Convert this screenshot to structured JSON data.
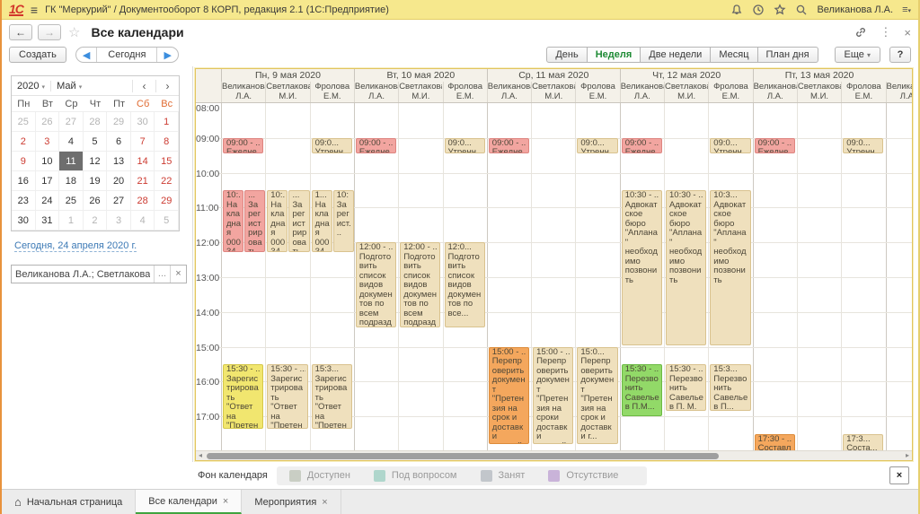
{
  "titlebar": {
    "app_title": "ГК \"Меркурий\" / Документооборот 8 КОРП, редакция 2.1  (1С:Предприятие)",
    "user": "Великанова Л.А."
  },
  "navbar": {
    "title": "Все календари"
  },
  "toolbar": {
    "create": "Создать",
    "today": "Сегодня",
    "views": [
      {
        "label": "День"
      },
      {
        "label": "Неделя"
      },
      {
        "label": "Две недели"
      },
      {
        "label": "Месяц"
      },
      {
        "label": "План дня"
      }
    ],
    "more": "Еще",
    "help": "?"
  },
  "icons": {
    "back": "←",
    "forward": "→",
    "star": "☆",
    "close": "×",
    "dots": "⋮",
    "more_caret": "▾",
    "prev": "◀",
    "next": "▶",
    "mc_prev": "‹",
    "mc_next": "›",
    "hamburger": "≡",
    "home": "⌂",
    "ellipsis": "...",
    "scroll_left": "◂",
    "scroll_right": "▸",
    "caret": "▾"
  },
  "sidebar": {
    "mini_calendar": {
      "year": "2020",
      "month": "Май",
      "weekdays": [
        {
          "label": "Пн",
          "weekend": false
        },
        {
          "label": "Вт",
          "weekend": false
        },
        {
          "label": "Ср",
          "weekend": false
        },
        {
          "label": "Чт",
          "weekend": false
        },
        {
          "label": "Пт",
          "weekend": false
        },
        {
          "label": "Сб",
          "weekend": true
        },
        {
          "label": "Вс",
          "weekend": true
        }
      ],
      "rows": [
        [
          {
            "n": 25,
            "t": "dim"
          },
          {
            "n": 26,
            "t": "dim"
          },
          {
            "n": 27,
            "t": "dim"
          },
          {
            "n": 28,
            "t": "dim"
          },
          {
            "n": 29,
            "t": "dim"
          },
          {
            "n": 30,
            "t": "dim"
          },
          {
            "n": 1,
            "t": "red"
          }
        ],
        [
          {
            "n": 2,
            "t": "red"
          },
          {
            "n": 3,
            "t": "red"
          },
          {
            "n": 4,
            "t": "norm"
          },
          {
            "n": 5,
            "t": "norm"
          },
          {
            "n": 6,
            "t": "norm"
          },
          {
            "n": 7,
            "t": "red"
          },
          {
            "n": 8,
            "t": "red"
          }
        ],
        [
          {
            "n": 9,
            "t": "red"
          },
          {
            "n": 10,
            "t": "norm"
          },
          {
            "n": 11,
            "t": "sel"
          },
          {
            "n": 12,
            "t": "norm"
          },
          {
            "n": 13,
            "t": "norm"
          },
          {
            "n": 14,
            "t": "red"
          },
          {
            "n": 15,
            "t": "red"
          }
        ],
        [
          {
            "n": 16,
            "t": "norm"
          },
          {
            "n": 17,
            "t": "norm"
          },
          {
            "n": 18,
            "t": "norm"
          },
          {
            "n": 19,
            "t": "norm"
          },
          {
            "n": 20,
            "t": "norm"
          },
          {
            "n": 21,
            "t": "red"
          },
          {
            "n": 22,
            "t": "red"
          }
        ],
        [
          {
            "n": 23,
            "t": "norm"
          },
          {
            "n": 24,
            "t": "norm"
          },
          {
            "n": 25,
            "t": "norm"
          },
          {
            "n": 26,
            "t": "norm"
          },
          {
            "n": 27,
            "t": "norm"
          },
          {
            "n": 28,
            "t": "red"
          },
          {
            "n": 29,
            "t": "red"
          }
        ],
        [
          {
            "n": 30,
            "t": "norm"
          },
          {
            "n": 31,
            "t": "norm"
          },
          {
            "n": 1,
            "t": "dim"
          },
          {
            "n": 2,
            "t": "dim"
          },
          {
            "n": 3,
            "t": "dim"
          },
          {
            "n": 4,
            "t": "dim"
          },
          {
            "n": 5,
            "t": "dim"
          }
        ]
      ]
    },
    "today_link": "Сегодня, 24 апреля 2020 г.",
    "filter_value": "Великанова Л.А.; Светлакова М.И.; Фр"
  },
  "calendar": {
    "hours": [
      "08:00",
      "09:00",
      "10:00",
      "11:00",
      "12:00",
      "13:00",
      "14:00",
      "15:00",
      "16:00",
      "17:00"
    ],
    "days": [
      {
        "label": "Пн, 9 мая 2020",
        "persons": [
          "Великанова Л.А.",
          "Светлакова М.И.",
          "Фролова Е.М."
        ]
      },
      {
        "label": "Вт, 10 мая 2020",
        "persons": [
          "Великанова Л.А.",
          "Светлакова М.И.",
          "Фролова Е.М."
        ]
      },
      {
        "label": "Ср, 11 мая 2020",
        "persons": [
          "Великанова Л.А.",
          "Светлакова М.И.",
          "Фролова Е.М."
        ]
      },
      {
        "label": "Чт, 12 мая 2020",
        "persons": [
          "Великанова Л.А.",
          "Светлакова М.И.",
          "Фролова Е.М."
        ]
      },
      {
        "label": "Пт, 13 мая 2020",
        "persons": [
          "Великанова Л.А.",
          "Светлакова М.И.",
          "Фролова Е.М."
        ]
      }
    ],
    "partial_person": "Великанова Л.А.",
    "events": [
      {
        "d": 0,
        "p": 0,
        "s": 9,
        "e": 9.5,
        "c": "red",
        "time": "09:00 - ...",
        "title": "Ежеднев..."
      },
      {
        "d": 0,
        "p": 0,
        "s": 10.5,
        "e": 12.33,
        "c": "red",
        "slot": 0,
        "slots": 2,
        "time": "10:...",
        "title": "Накладная 00034 по договору №3 (..."
      },
      {
        "d": 0,
        "p": 0,
        "s": 10.5,
        "e": 12.33,
        "c": "red",
        "slot": 1,
        "slots": 2,
        "time": "...",
        "title": "Зарегистрировать..."
      },
      {
        "d": 0,
        "p": 1,
        "s": 10.5,
        "e": 12.33,
        "c": "tan",
        "slot": 0,
        "slots": 2,
        "time": "10:...",
        "title": "Накладная 00034 по договору №3..."
      },
      {
        "d": 0,
        "p": 1,
        "s": 10.5,
        "e": 12.33,
        "c": "tan",
        "slot": 1,
        "slots": 2,
        "time": "...",
        "title": "Зарегистрировать..."
      },
      {
        "d": 0,
        "p": 2,
        "s": 9,
        "e": 9.5,
        "c": "tan",
        "time": "09:0...",
        "title": "Утренн..."
      },
      {
        "d": 0,
        "p": 2,
        "s": 10.5,
        "e": 12.33,
        "c": "tan",
        "slot": 0,
        "slots": 2,
        "time": "1...",
        "title": "Накладная 00034 по д..."
      },
      {
        "d": 0,
        "p": 2,
        "s": 10.5,
        "e": 12.33,
        "c": "tan",
        "slot": 1,
        "slots": 2,
        "time": "10:",
        "title": "Зарегист..."
      },
      {
        "d": 0,
        "p": 0,
        "s": 15.5,
        "e": 17.4,
        "c": "yellow",
        "time": "15:30 - ...",
        "title": "Зарегистрировать \"Ответ на \"Претензия на качество по..."
      },
      {
        "d": 0,
        "p": 1,
        "s": 15.5,
        "e": 17.4,
        "c": "tan",
        "time": "15:30 - ...",
        "title": "Зарегистрировать \"Ответ на \"Претензия на качество..."
      },
      {
        "d": 0,
        "p": 2,
        "s": 15.5,
        "e": 17.4,
        "c": "tan",
        "time": "15:3...",
        "title": "Зарегистрировать \"Ответ на \"Претензи..."
      },
      {
        "d": 1,
        "p": 0,
        "s": 9,
        "e": 9.5,
        "c": "red",
        "time": "09:00 - ...",
        "title": "Ежеднев..."
      },
      {
        "d": 1,
        "p": 2,
        "s": 9,
        "e": 9.5,
        "c": "tan",
        "time": "09:0...",
        "title": "Утренн..."
      },
      {
        "d": 1,
        "p": 0,
        "s": 12,
        "e": 14.5,
        "c": "tan",
        "time": "12:00 - ...",
        "title": "Подготовить список видов документов по всем подразделения"
      },
      {
        "d": 1,
        "p": 1,
        "s": 12,
        "e": 14.5,
        "c": "tan",
        "time": "12:00 - ...",
        "title": "Подготовить список видов документов по всем подразделен..."
      },
      {
        "d": 1,
        "p": 2,
        "s": 12,
        "e": 14.5,
        "c": "tan",
        "time": "12:0...",
        "title": "Подготовить список видов документов по все..."
      },
      {
        "d": 2,
        "p": 0,
        "s": 9,
        "e": 9.5,
        "c": "red",
        "time": "09:00 - ...",
        "title": "Ежеднев..."
      },
      {
        "d": 2,
        "p": 2,
        "s": 9,
        "e": 9.5,
        "c": "tan",
        "time": "09:0...",
        "title": "Утренн..."
      },
      {
        "d": 2,
        "p": 0,
        "s": 15,
        "e": 17.85,
        "c": "orange",
        "time": "15:00 - ...",
        "title": "Перепроверить документ \"Претензия на срок и доставки готовой продукции (№ 3..."
      },
      {
        "d": 2,
        "p": 1,
        "s": 15,
        "e": 17.85,
        "c": "tan",
        "time": "15:00 - ...",
        "title": "Перепроверить документ \"Претензия на сроки доставки готовой продукции (..."
      },
      {
        "d": 2,
        "p": 2,
        "s": 15,
        "e": 17.85,
        "c": "tan",
        "time": "15:0...",
        "title": "Перепроверить документ \"Претензия на срок и доставки г..."
      },
      {
        "d": 3,
        "p": 0,
        "s": 9,
        "e": 9.5,
        "c": "red",
        "time": "09:00 - ...",
        "title": "Ежеднев..."
      },
      {
        "d": 3,
        "p": 2,
        "s": 9,
        "e": 9.5,
        "c": "tan",
        "time": "09:0...",
        "title": "Утренн..."
      },
      {
        "d": 3,
        "p": 0,
        "s": 10.5,
        "e": 15,
        "c": "tan",
        "time": "10:30 - ...",
        "title": "Адвокатское бюро \"Аплана\" необходимо позвонить"
      },
      {
        "d": 3,
        "p": 1,
        "s": 10.5,
        "e": 15,
        "c": "tan",
        "time": "10:30 - ...",
        "title": "Адвокатское бюро \"Аплана\" необходимо позвонить"
      },
      {
        "d": 3,
        "p": 2,
        "s": 10.5,
        "e": 15,
        "c": "tan",
        "time": "10:3...",
        "title": "Адвокатское бюро \"Аплана\" необходимо позвонить"
      },
      {
        "d": 3,
        "p": 0,
        "s": 15.5,
        "e": 17.05,
        "c": "green",
        "time": "15:30 - ...",
        "title": "Перезвонить Савельев П.М..."
      },
      {
        "d": 3,
        "p": 1,
        "s": 15.5,
        "e": 16.9,
        "c": "tan",
        "time": "15:30 - ...",
        "title": "Перезвонить Савельев П. М."
      },
      {
        "d": 3,
        "p": 2,
        "s": 15.5,
        "e": 16.9,
        "c": "tan",
        "time": "15:3...",
        "title": "Перезвонить Савельев П..."
      },
      {
        "d": 4,
        "p": 0,
        "s": 9,
        "e": 9.5,
        "c": "red",
        "time": "09:00 - ...",
        "title": "Ежеднев..."
      },
      {
        "d": 4,
        "p": 2,
        "s": 9,
        "e": 9.5,
        "c": "tan",
        "time": "09:0...",
        "title": "Утренн..."
      },
      {
        "d": 4,
        "p": 0,
        "s": 17.5,
        "e": 18.2,
        "c": "orange",
        "time": "17:30 - ...",
        "title": "Составле..."
      },
      {
        "d": 4,
        "p": 2,
        "s": 17.5,
        "e": 18.2,
        "c": "tan",
        "time": "17:3...",
        "title": "Соста..."
      }
    ]
  },
  "legend": {
    "label": "Фон календаря",
    "items": [
      {
        "label": "Доступен",
        "color": "#c9cec4"
      },
      {
        "label": "Под вопросом",
        "color": "#afd6cc"
      },
      {
        "label": "Занят",
        "color": "#c2c6cb"
      },
      {
        "label": "Отсутствие",
        "color": "#c9b3d9"
      }
    ]
  },
  "tabbar": {
    "tabs": [
      {
        "label": "Начальная страница",
        "closable": false,
        "active": false
      },
      {
        "label": "Все календари",
        "closable": true,
        "active": true
      },
      {
        "label": "Мероприятия",
        "closable": true,
        "active": false
      }
    ]
  }
}
